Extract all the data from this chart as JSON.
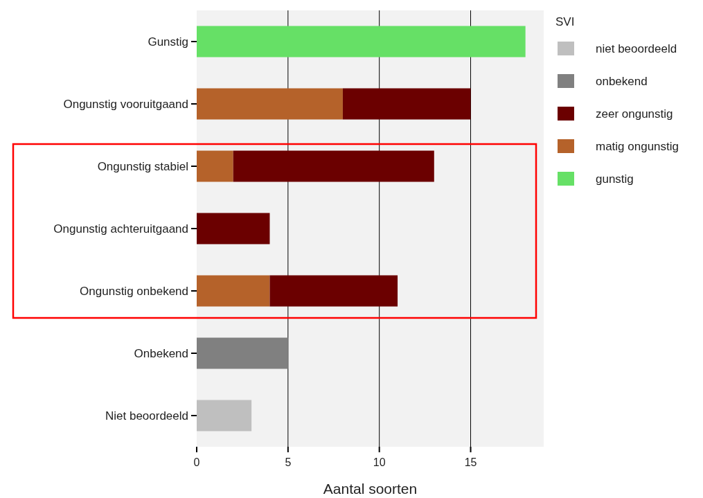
{
  "chart_data": {
    "type": "bar",
    "orientation": "horizontal",
    "stacked": true,
    "xlabel": "Aantal soorten",
    "legend_title": "SVI",
    "legend": "right",
    "grid": "x",
    "categories": [
      "Gunstig",
      "Ongunstig vooruitgaand",
      "Ongunstig stabiel",
      "Ongunstig achteruitgaand",
      "Ongunstig onbekend",
      "Onbekend",
      "Niet beoordeeld"
    ],
    "xlim": [
      0,
      19
    ],
    "xticks": [
      0,
      5,
      10,
      15
    ],
    "series": [
      {
        "name": "gunstig",
        "color": "#66e066",
        "values": [
          18,
          null,
          null,
          null,
          null,
          null,
          null
        ]
      },
      {
        "name": "matig ongunstig",
        "color": "#b5622a",
        "values": [
          null,
          8,
          2,
          null,
          4,
          null,
          null
        ]
      },
      {
        "name": "zeer ongunstig",
        "color": "#6b0000",
        "values": [
          null,
          7,
          11,
          4,
          7,
          null,
          null
        ]
      },
      {
        "name": "onbekend",
        "color": "#808080",
        "values": [
          null,
          null,
          null,
          null,
          null,
          5,
          null
        ]
      },
      {
        "name": "niet beoordeeld",
        "color": "#bfbfbf",
        "values": [
          null,
          null,
          null,
          null,
          null,
          null,
          3
        ]
      }
    ]
  }
}
